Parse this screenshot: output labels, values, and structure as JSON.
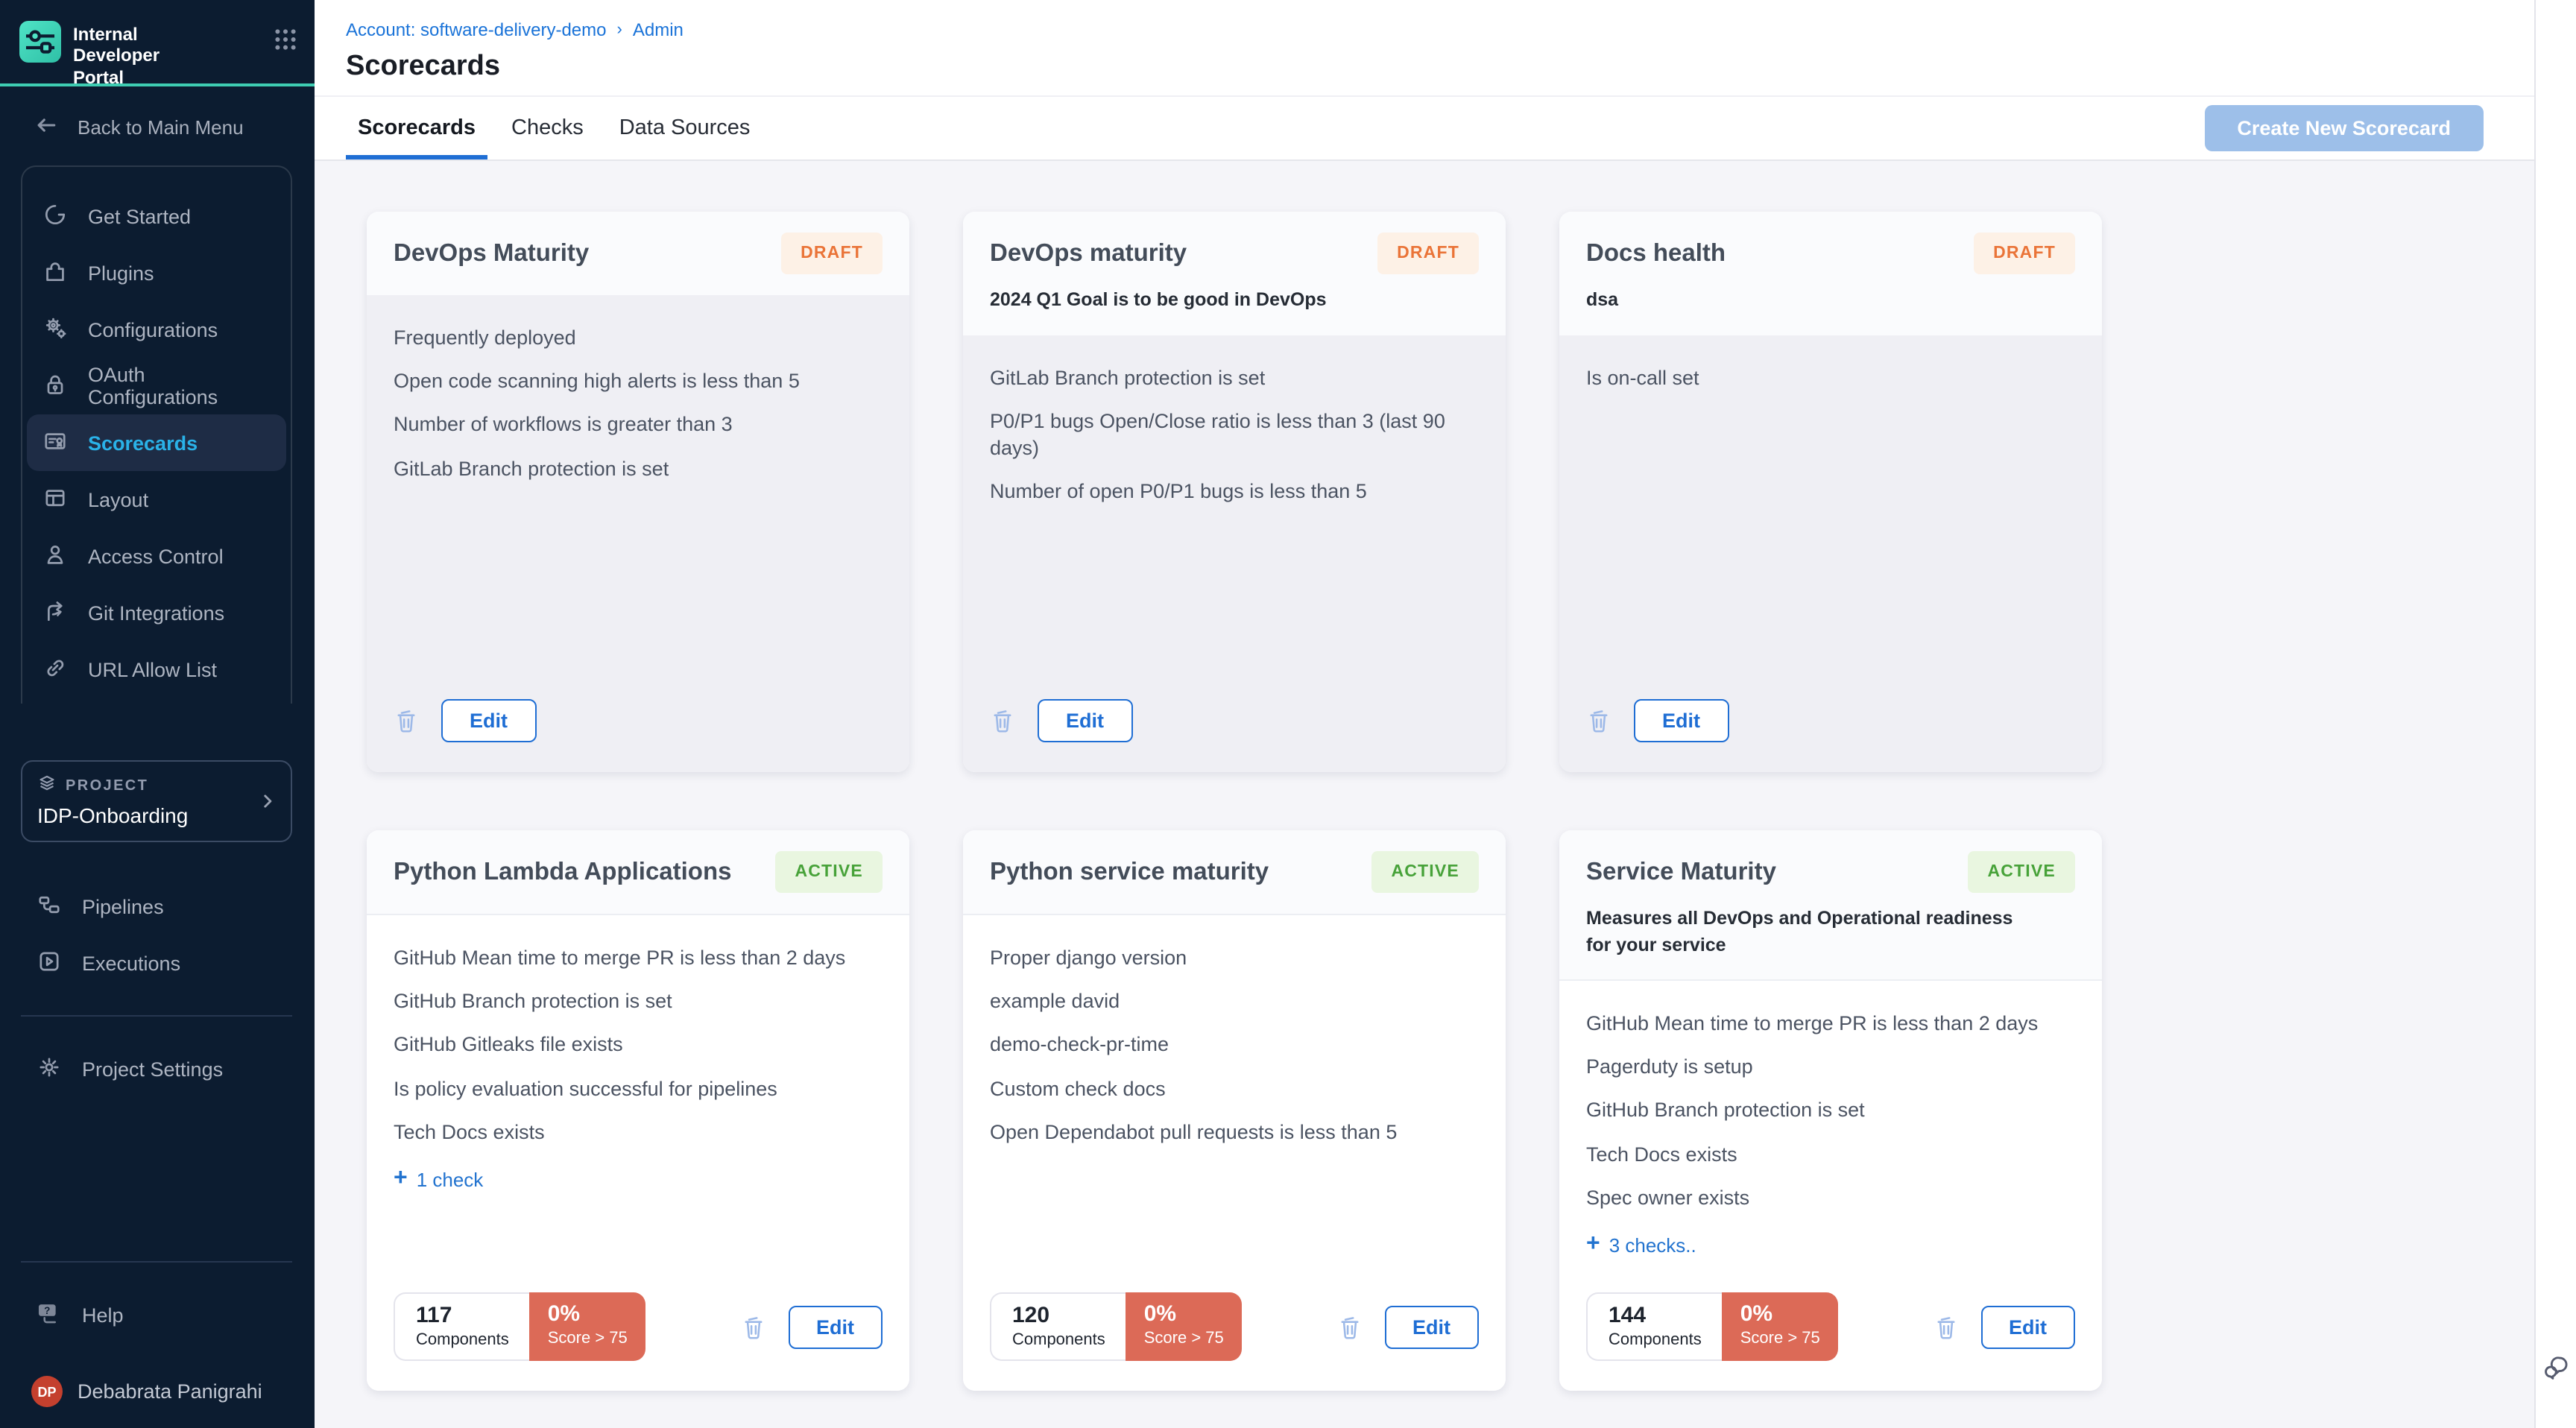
{
  "sidebar": {
    "logo_title": "Internal Developer Portal",
    "back_label": "Back to Main Menu",
    "nav_items": [
      {
        "icon": "get-started",
        "label": "Get Started",
        "active": false
      },
      {
        "icon": "plugins",
        "label": "Plugins",
        "active": false
      },
      {
        "icon": "configurations",
        "label": "Configurations",
        "active": false
      },
      {
        "icon": "oauth",
        "label": "OAuth Configurations",
        "active": false
      },
      {
        "icon": "scorecards",
        "label": "Scorecards",
        "active": true
      },
      {
        "icon": "layout",
        "label": "Layout",
        "active": false
      },
      {
        "icon": "access-control",
        "label": "Access Control",
        "active": false
      },
      {
        "icon": "git-integrations",
        "label": "Git Integrations",
        "active": false
      },
      {
        "icon": "url-allow-list",
        "label": "URL Allow List",
        "active": false
      }
    ],
    "project": {
      "label": "PROJECT",
      "name": "IDP-Onboarding"
    },
    "project_nav": [
      {
        "icon": "pipelines",
        "label": "Pipelines"
      },
      {
        "icon": "executions",
        "label": "Executions"
      }
    ],
    "settings_label": "Project Settings",
    "help_label": "Help",
    "user": {
      "initials": "DP",
      "name": "Debabrata Panigrahi"
    }
  },
  "header": {
    "breadcrumb": {
      "account": "Account: software-delivery-demo",
      "section": "Admin"
    },
    "title": "Scorecards"
  },
  "tabs": {
    "items": [
      {
        "label": "Scorecards",
        "active": true
      },
      {
        "label": "Checks",
        "active": false
      },
      {
        "label": "Data Sources",
        "active": false
      }
    ],
    "create_button": "Create New Scorecard"
  },
  "cards_common": {
    "edit_label": "Edit",
    "components_label": "Components",
    "score_label": "Score > 75",
    "score_value": "0%"
  },
  "cards": [
    {
      "title": "DevOps Maturity",
      "status": "DRAFT",
      "description": "",
      "checks": [
        "Frequently deployed",
        "Open code scanning high alerts is less than 5",
        "Number of workflows is greater than 3",
        "GitLab Branch protection is set"
      ],
      "more_checks": "",
      "components": ""
    },
    {
      "title": "DevOps maturity",
      "status": "DRAFT",
      "description": "2024 Q1 Goal is to be good in DevOps",
      "checks": [
        "GitLab Branch protection is set",
        "P0/P1 bugs Open/Close ratio is less than 3 (last 90 days)",
        "Number of open P0/P1 bugs is less than 5"
      ],
      "more_checks": "",
      "components": ""
    },
    {
      "title": "Docs health",
      "status": "DRAFT",
      "description": "dsa",
      "checks": [
        "Is on-call set"
      ],
      "more_checks": "",
      "components": ""
    },
    {
      "title": "Python Lambda Applications",
      "status": "ACTIVE",
      "description": "",
      "checks": [
        "GitHub Mean time to merge PR is less than 2 days",
        "GitHub Branch protection is set",
        "GitHub Gitleaks file exists",
        "Is policy evaluation successful for pipelines",
        "Tech Docs exists"
      ],
      "more_checks": "1 check",
      "components": "117"
    },
    {
      "title": "Python service maturity",
      "status": "ACTIVE",
      "description": "",
      "checks": [
        "Proper django version",
        "example david",
        "demo-check-pr-time",
        "Custom check docs",
        "Open Dependabot pull requests is less than 5"
      ],
      "more_checks": "",
      "components": "120"
    },
    {
      "title": "Service Maturity",
      "status": "ACTIVE",
      "description": "Measures all DevOps and Operational readiness for your service",
      "checks": [
        "GitHub Mean time to merge PR is less than 2 days",
        "Pagerduty is setup",
        "GitHub Branch protection is set",
        "Tech Docs exists",
        "Spec owner exists"
      ],
      "more_checks": "3 checks..",
      "components": "144"
    }
  ],
  "colors": {
    "sidebar_bg": "#0c1c30",
    "brand_teal": "#3ecdb2",
    "active_nav_blue": "#2ab2e8",
    "link_blue": "#1f6ed4",
    "draft_orange": "#ea7438",
    "active_green": "#47a239",
    "score_red": "#dc6a57",
    "avatar_red": "#c4402e",
    "content_bg": "#f5f5f9"
  }
}
